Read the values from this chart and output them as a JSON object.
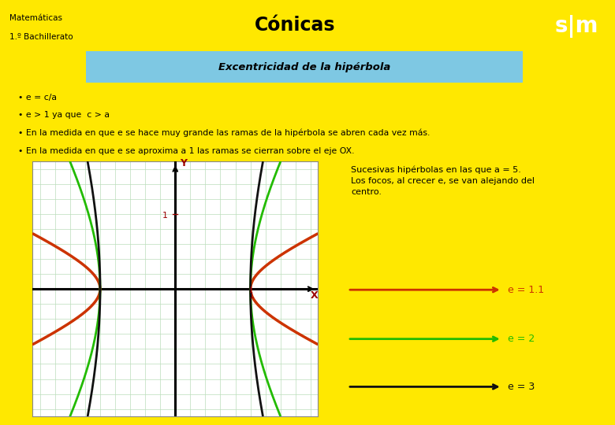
{
  "title": "Cónicas",
  "subtitle": "Excentricidad de la hipérbola",
  "header_subtitle_line1": "Matemáticas",
  "header_subtitle_line2": "1.º Bachillerato",
  "bg_color": "#FFE800",
  "subtitle_bg": "#7EC8E3",
  "plot_bg": "#FFFFFF",
  "border_color": "#555555",
  "bullets": [
    "e = c/a",
    "e > 1 ya que  c > a",
    "En la medida en que e se hace muy grande las ramas de la hipérbola se abren cada vez más.",
    "En la medida en que e se aproxima a 1 las ramas se cierran sobre el eje OX."
  ],
  "annotation_box_text": "Sucesivas hipérbolas en las que a = 5.\nLos focos, al crecer e, se van alejando del\ncentro.",
  "annotation_box_bg": "#B8B8E8",
  "e_values": [
    1.1,
    2.0,
    3.0
  ],
  "e_colors": [
    "#CC3300",
    "#22BB00",
    "#111111"
  ],
  "a": 5.0,
  "grid_color": "#BBDDBB",
  "xlim": [
    -9.5,
    9.5
  ],
  "ylim": [
    -8.5,
    8.5
  ],
  "logo_bg": "#CC0000",
  "logo_text": "s|m"
}
